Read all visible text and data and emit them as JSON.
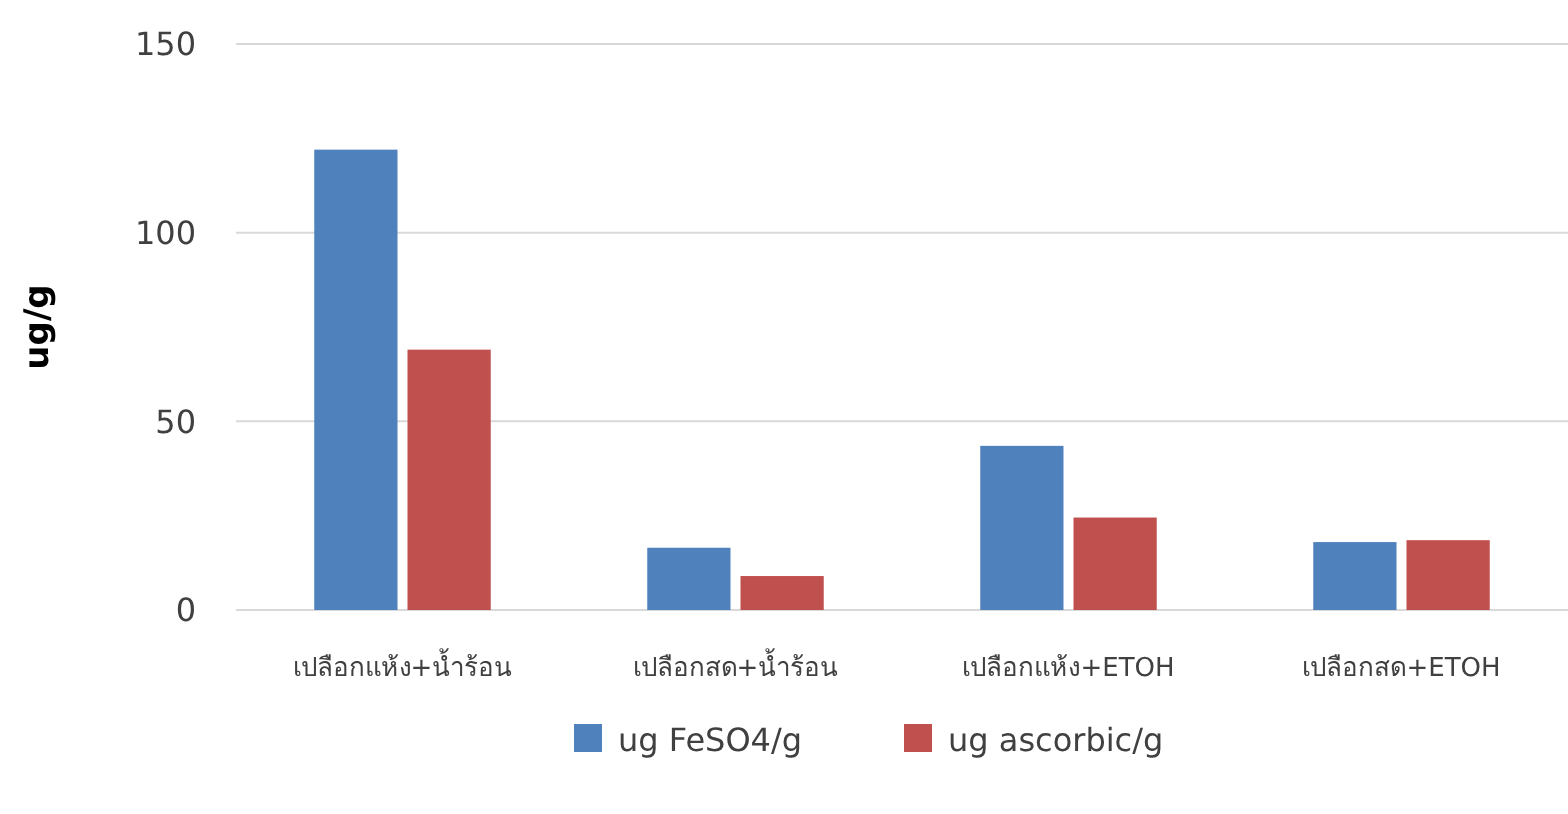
{
  "chart_data": {
    "type": "bar",
    "ylabel": "ug/g",
    "categories": [
      "เปลือกแห้ง+น้ำร้อน",
      "เปลือกสด+น้ำร้อน",
      "เปลือกแห้ง+ETOH",
      "เปลือกสด+ETOH"
    ],
    "series": [
      {
        "name": "ug FeSO4/g",
        "color": "#4f81bd",
        "values": [
          122,
          16.5,
          43.5,
          18
        ]
      },
      {
        "name": "ug ascorbic/g",
        "color": "#c0504d",
        "values": [
          69,
          9,
          24.5,
          18.5
        ]
      }
    ],
    "ylim": [
      0,
      150
    ],
    "yticks": [
      0,
      50,
      100,
      150
    ],
    "grid": "y",
    "legend": "bottom"
  }
}
